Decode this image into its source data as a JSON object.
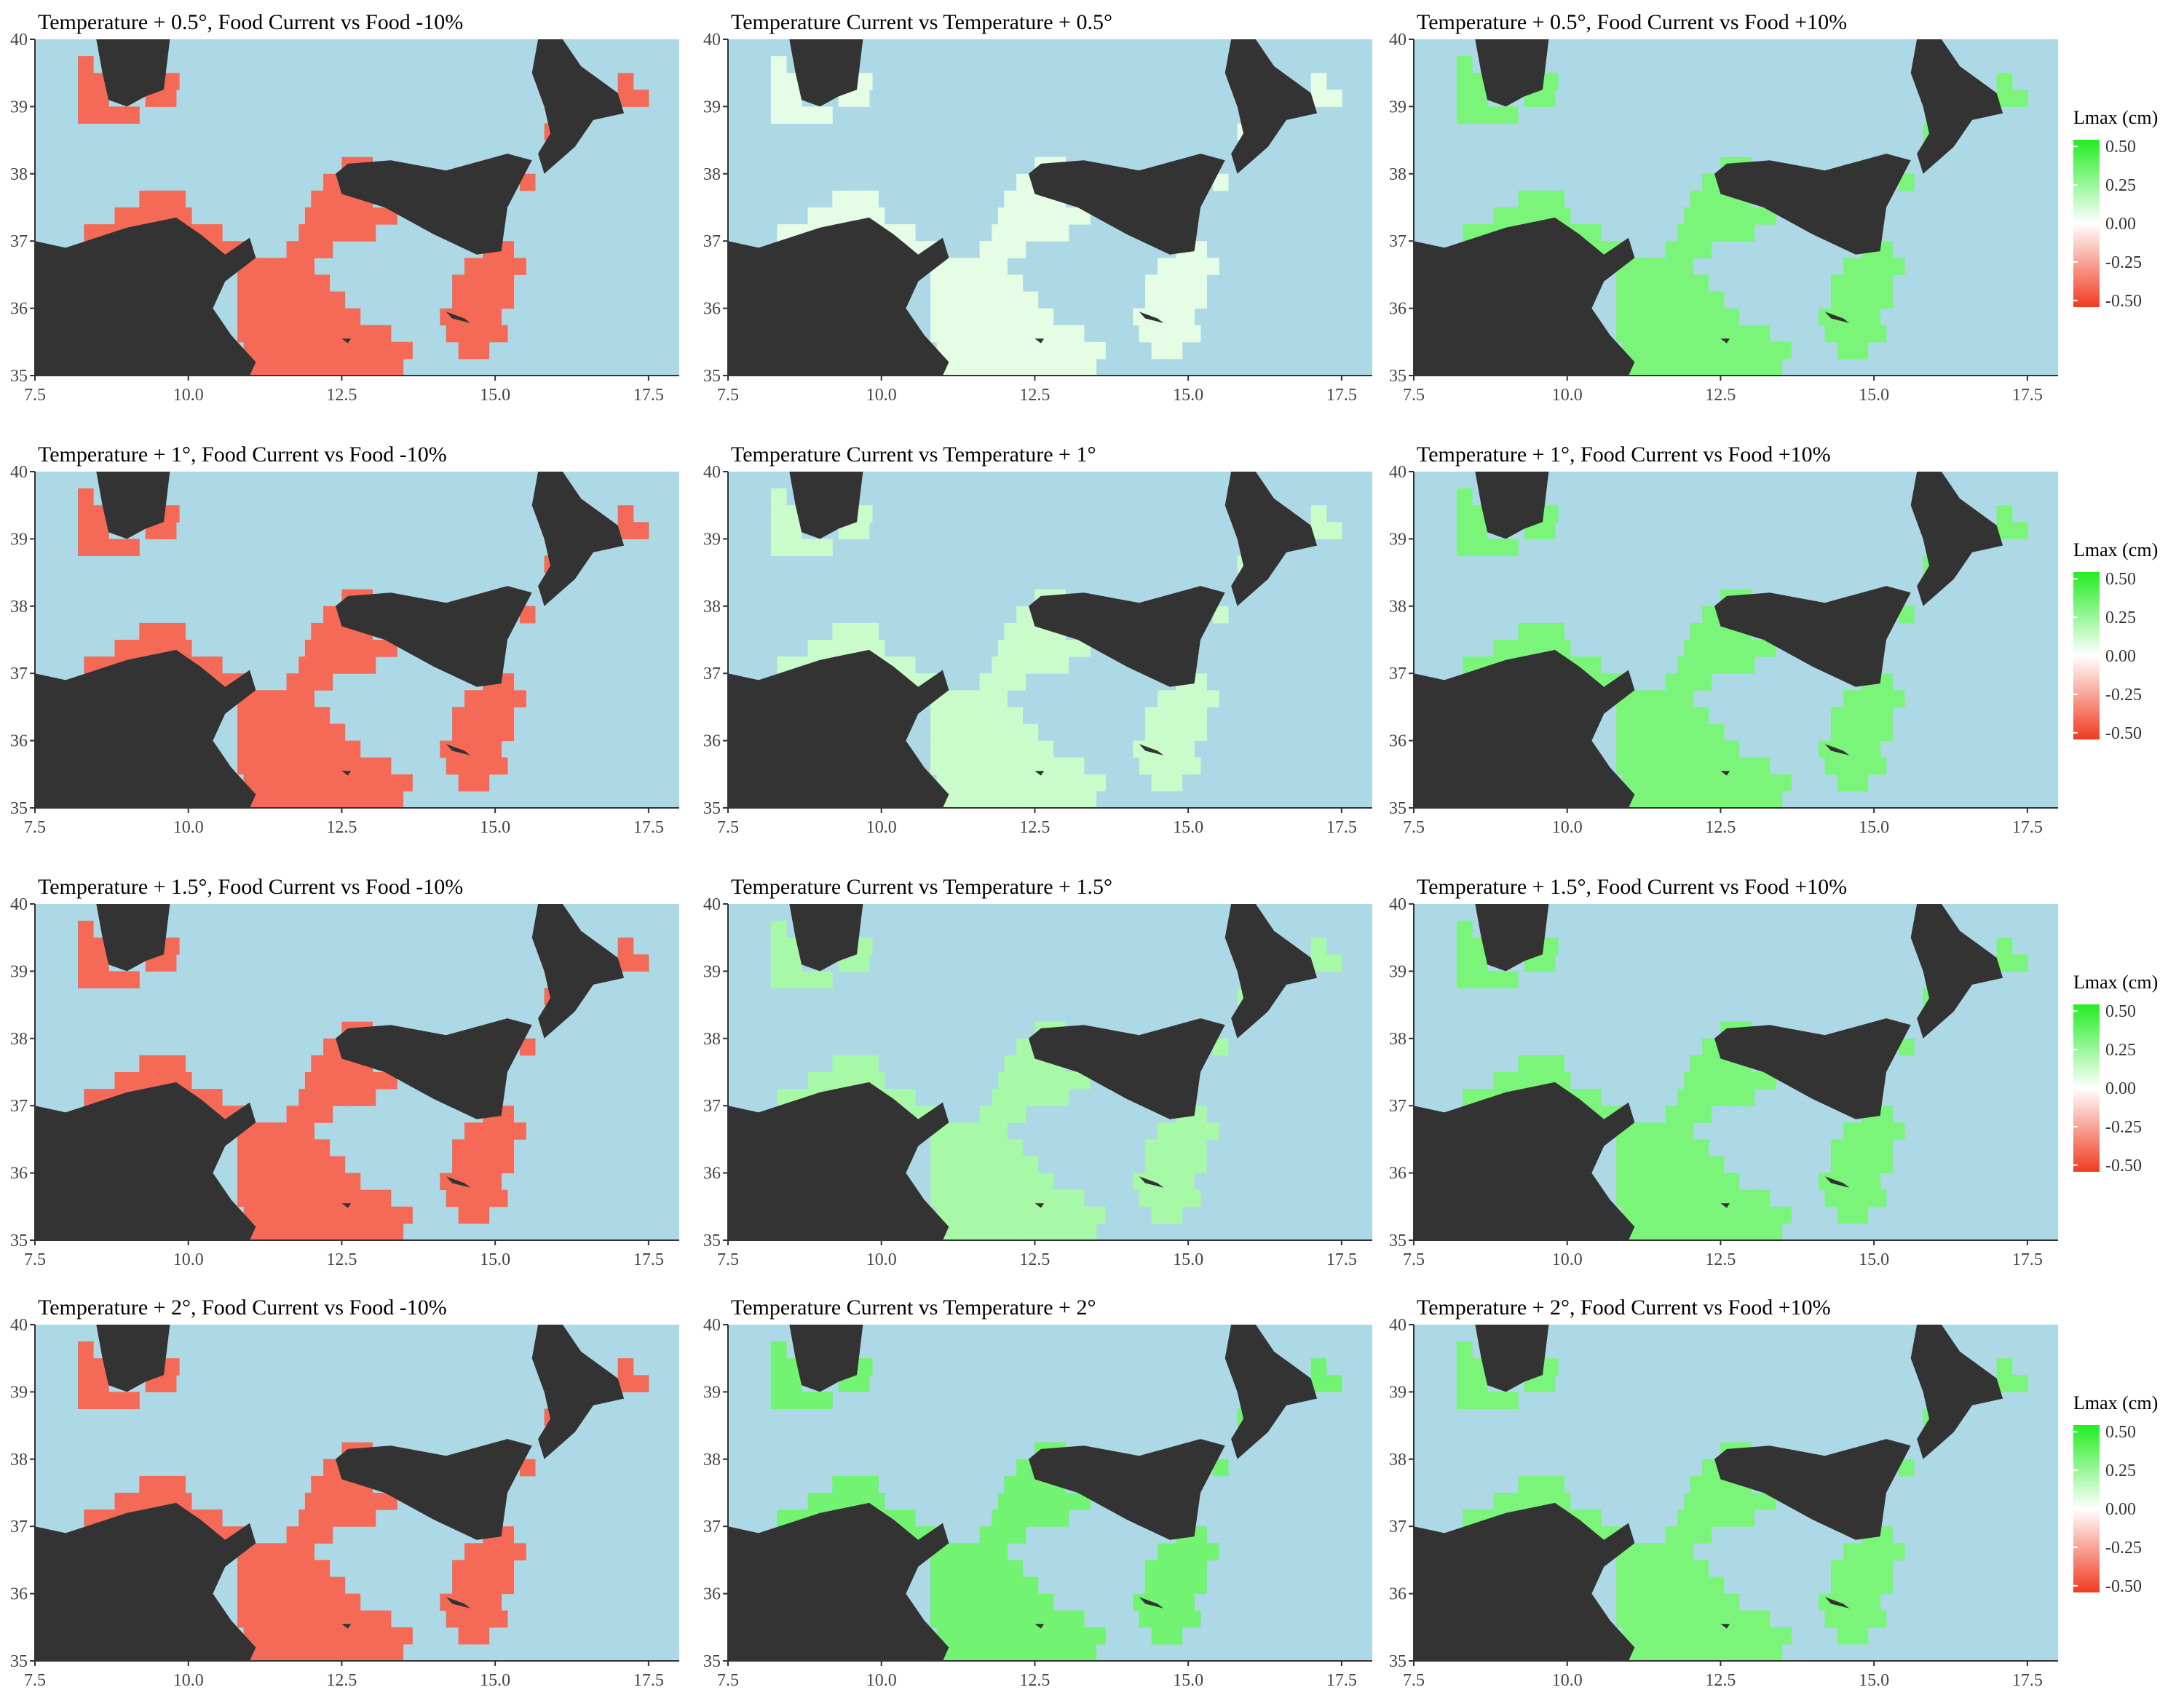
{
  "figure": {
    "x_ticks": [
      "7.5",
      "10.0",
      "12.5",
      "15.0",
      "17.5"
    ],
    "y_ticks": [
      "35",
      "36",
      "37",
      "38",
      "39",
      "40"
    ],
    "x_range": [
      7.5,
      18.0
    ],
    "y_range": [
      35,
      40
    ]
  },
  "colors": {
    "sea": "#add8e6",
    "land": "#333333",
    "strong_red": "#f03b20",
    "strong_green": "#22ee22"
  },
  "legend": {
    "title": "Lmax (cm)",
    "labels": [
      "0.50",
      "0.25",
      "0.00",
      "-0.25",
      "-0.50"
    ],
    "range": [
      -0.5,
      0.5
    ]
  },
  "rows": [
    {
      "panels": [
        {
          "title": "Temperature + 0.5°, Food Current vs Food -10%",
          "value": -0.38
        },
        {
          "title": "Temperature Current vs Temperature + 0.5°",
          "value": 0.06
        },
        {
          "title": "Temperature + 0.5°, Food Current vs Food +10%",
          "value": 0.3
        }
      ]
    },
    {
      "panels": [
        {
          "title": "Temperature + 1°, Food Current vs Food -10%",
          "value": -0.38
        },
        {
          "title": "Temperature Current vs Temperature + 1°",
          "value": 0.12
        },
        {
          "title": "Temperature + 1°, Food Current vs Food +10%",
          "value": 0.3
        }
      ]
    },
    {
      "panels": [
        {
          "title": "Temperature + 1.5°, Food Current vs Food -10%",
          "value": -0.38
        },
        {
          "title": "Temperature Current vs Temperature + 1.5°",
          "value": 0.2
        },
        {
          "title": "Temperature + 1.5°, Food Current vs Food +10%",
          "value": 0.3
        }
      ]
    },
    {
      "panels": [
        {
          "title": "Temperature + 2°, Food Current vs Food -10%",
          "value": -0.38
        },
        {
          "title": "Temperature Current vs Temperature + 2°",
          "value": 0.32
        },
        {
          "title": "Temperature + 2°, Food Current vs Food +10%",
          "value": 0.3
        }
      ]
    }
  ]
}
